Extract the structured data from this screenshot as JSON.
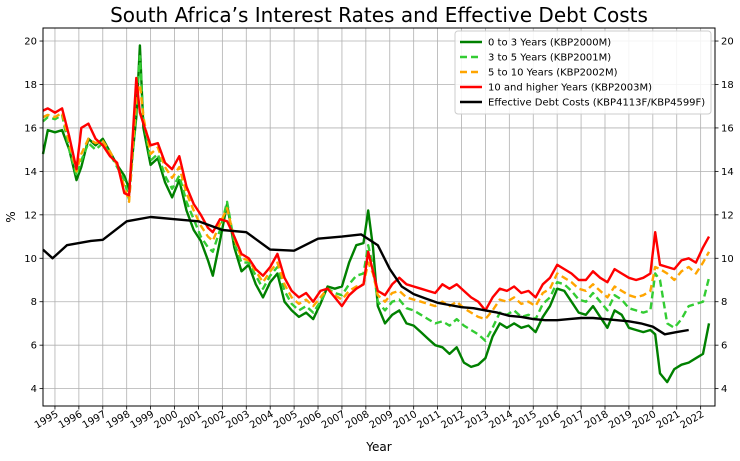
{
  "chart_data": {
    "type": "line",
    "title": "South Africa’s Interest Rates and Effective Debt Costs",
    "xlabel": "Year",
    "ylabel": "%",
    "xlim": [
      1994.5,
      2022.6
    ],
    "ylim": [
      3.2,
      20.6
    ],
    "grid": true,
    "legend_position": "top-right",
    "x_ticks": [
      1995,
      1996,
      1997,
      1998,
      1999,
      2000,
      2001,
      2002,
      2003,
      2004,
      2005,
      2006,
      2007,
      2008,
      2009,
      2010,
      2011,
      2012,
      2013,
      2014,
      2015,
      2016,
      2017,
      2018,
      2019,
      2020,
      2021,
      2022
    ],
    "x_tick_labels": [
      "1995",
      "1996",
      "1997",
      "1998",
      "1999",
      "2000",
      "2001",
      "2002",
      "2003",
      "2004",
      "2005",
      "2006",
      "2007",
      "2008",
      "2009",
      "2010",
      "2011",
      "2012",
      "2013",
      "2014",
      "2015",
      "2016",
      "2017",
      "2018",
      "2019",
      "2020",
      "2021",
      "2022"
    ],
    "y_ticks": [
      4,
      6,
      8,
      10,
      12,
      14,
      16,
      18,
      20
    ],
    "y_tick_labels": [
      "4",
      "6",
      "8",
      "10",
      "12",
      "14",
      "16",
      "18",
      "20"
    ],
    "series": [
      {
        "name": "0 to 3 Years (KBP2000M)",
        "color": "#008000",
        "dash": "solid",
        "x": [
          1994.5,
          1994.7,
          1995.0,
          1995.3,
          1995.6,
          1995.9,
          1996.1,
          1996.4,
          1996.7,
          1997.0,
          1997.3,
          1997.6,
          1997.9,
          1998.1,
          1998.4,
          1998.55,
          1998.7,
          1999.0,
          1999.3,
          1999.6,
          1999.9,
          2000.2,
          2000.5,
          2000.8,
          2001.1,
          2001.4,
          2001.6,
          2001.9,
          2002.2,
          2002.5,
          2002.8,
          2003.1,
          2003.4,
          2003.7,
          2004.0,
          2004.3,
          2004.6,
          2004.9,
          2005.2,
          2005.5,
          2005.8,
          2006.1,
          2006.4,
          2006.7,
          2007.0,
          2007.3,
          2007.6,
          2007.9,
          2008.1,
          2008.3,
          2008.5,
          2008.8,
          2009.1,
          2009.4,
          2009.7,
          2010.0,
          2010.3,
          2010.6,
          2010.9,
          2011.2,
          2011.5,
          2011.8,
          2012.1,
          2012.4,
          2012.7,
          2013.0,
          2013.3,
          2013.6,
          2013.9,
          2014.2,
          2014.5,
          2014.8,
          2015.1,
          2015.4,
          2015.7,
          2016.0,
          2016.3,
          2016.6,
          2016.9,
          2017.2,
          2017.5,
          2017.8,
          2018.1,
          2018.4,
          2018.7,
          2019.0,
          2019.3,
          2019.6,
          2019.9,
          2020.1,
          2020.3,
          2020.6,
          2020.9,
          2021.2,
          2021.5,
          2021.8,
          2022.1,
          2022.35
        ],
        "y": [
          14.8,
          15.9,
          15.8,
          15.9,
          15.0,
          13.6,
          14.2,
          15.5,
          15.2,
          15.5,
          14.9,
          14.3,
          13.8,
          13.2,
          16.5,
          19.8,
          16.0,
          14.3,
          14.6,
          13.5,
          12.8,
          13.6,
          12.2,
          11.3,
          10.8,
          9.9,
          9.2,
          10.8,
          12.5,
          10.5,
          9.4,
          9.7,
          8.8,
          8.2,
          8.9,
          9.3,
          8.0,
          7.6,
          7.3,
          7.5,
          7.2,
          7.9,
          8.7,
          8.6,
          8.7,
          9.8,
          10.6,
          10.7,
          12.2,
          10.5,
          7.8,
          7.0,
          7.4,
          7.6,
          7.0,
          6.9,
          6.6,
          6.3,
          6.0,
          5.9,
          5.6,
          5.9,
          5.2,
          5.0,
          5.1,
          5.4,
          6.4,
          7.0,
          6.8,
          7.0,
          6.8,
          6.9,
          6.6,
          7.3,
          7.8,
          8.6,
          8.5,
          8.0,
          7.5,
          7.4,
          7.8,
          7.3,
          6.8,
          7.6,
          7.4,
          6.8,
          6.7,
          6.6,
          6.7,
          6.5,
          4.7,
          4.3,
          4.9,
          5.1,
          5.2,
          5.4,
          5.6,
          7.0
        ]
      },
      {
        "name": "3 to 5 Years (KBP2001M)",
        "color": "#33cc33",
        "dash": "dashed",
        "x": [
          1994.5,
          1994.7,
          1995.0,
          1995.3,
          1995.6,
          1995.9,
          1996.1,
          1996.4,
          1996.7,
          1997.0,
          1997.3,
          1997.6,
          1997.9,
          1998.1,
          1998.4,
          1998.55,
          1998.7,
          1999.0,
          1999.3,
          1999.6,
          1999.9,
          2000.2,
          2000.5,
          2000.8,
          2001.1,
          2001.4,
          2001.6,
          2001.9,
          2002.2,
          2002.5,
          2002.8,
          2003.1,
          2003.4,
          2003.7,
          2004.0,
          2004.3,
          2004.6,
          2004.9,
          2005.2,
          2005.5,
          2005.8,
          2006.1,
          2006.4,
          2006.7,
          2007.0,
          2007.3,
          2007.6,
          2007.9,
          2008.1,
          2008.3,
          2008.5,
          2008.8,
          2009.1,
          2009.4,
          2009.7,
          2010.0,
          2010.3,
          2010.6,
          2010.9,
          2011.2,
          2011.5,
          2011.8,
          2012.1,
          2012.4,
          2012.7,
          2013.0,
          2013.3,
          2013.6,
          2013.9,
          2014.2,
          2014.5,
          2014.8,
          2015.1,
          2015.4,
          2015.7,
          2016.0,
          2016.3,
          2016.6,
          2016.9,
          2017.2,
          2017.5,
          2017.8,
          2018.1,
          2018.4,
          2018.7,
          2019.0,
          2019.3,
          2019.6,
          2019.9,
          2020.1,
          2020.3,
          2020.6,
          2020.9,
          2021.2,
          2021.5,
          2021.8,
          2022.1,
          2022.35
        ],
        "y": [
          16.3,
          16.5,
          16.4,
          16.6,
          15.0,
          13.8,
          14.5,
          15.3,
          15.0,
          15.3,
          14.8,
          14.2,
          13.6,
          12.7,
          16.8,
          19.3,
          16.4,
          14.5,
          14.8,
          13.8,
          13.2,
          13.8,
          12.6,
          11.8,
          11.0,
          10.5,
          10.3,
          11.3,
          12.6,
          10.7,
          9.8,
          9.8,
          9.2,
          8.6,
          9.2,
          9.6,
          8.5,
          7.9,
          7.6,
          7.8,
          7.5,
          8.0,
          8.6,
          8.4,
          8.3,
          8.8,
          9.2,
          9.3,
          10.6,
          9.6,
          8.0,
          7.6,
          8.0,
          8.1,
          7.7,
          7.6,
          7.4,
          7.2,
          7.0,
          7.1,
          6.9,
          7.2,
          6.9,
          6.7,
          6.5,
          6.2,
          6.8,
          7.5,
          7.4,
          7.6,
          7.3,
          7.4,
          7.2,
          7.9,
          8.2,
          8.9,
          8.8,
          8.5,
          8.1,
          8.0,
          8.4,
          8.0,
          7.6,
          8.3,
          8.1,
          7.7,
          7.6,
          7.5,
          7.6,
          9.3,
          9.0,
          7.0,
          6.8,
          7.2,
          7.8,
          7.9,
          8.0,
          9.1
        ]
      },
      {
        "name": "5 to 10 Years (KBP2002M)",
        "color": "#ffa500",
        "dash": "dashed",
        "x": [
          1994.5,
          1994.7,
          1995.0,
          1995.3,
          1995.6,
          1995.9,
          1996.1,
          1996.4,
          1996.7,
          1997.0,
          1997.3,
          1997.6,
          1997.9,
          1998.1,
          1998.4,
          1998.55,
          1998.7,
          1999.0,
          1999.3,
          1999.6,
          1999.9,
          2000.2,
          2000.5,
          2000.8,
          2001.1,
          2001.4,
          2001.6,
          2001.9,
          2002.2,
          2002.5,
          2002.8,
          2003.1,
          2003.4,
          2003.7,
          2004.0,
          2004.3,
          2004.6,
          2004.9,
          2005.2,
          2005.5,
          2005.8,
          2006.1,
          2006.4,
          2006.7,
          2007.0,
          2007.3,
          2007.6,
          2007.9,
          2008.1,
          2008.3,
          2008.5,
          2008.8,
          2009.1,
          2009.4,
          2009.7,
          2010.0,
          2010.3,
          2010.6,
          2010.9,
          2011.2,
          2011.5,
          2011.8,
          2012.1,
          2012.4,
          2012.7,
          2013.0,
          2013.3,
          2013.6,
          2013.9,
          2014.2,
          2014.5,
          2014.8,
          2015.1,
          2015.4,
          2015.7,
          2016.0,
          2016.3,
          2016.6,
          2016.9,
          2017.2,
          2017.5,
          2017.8,
          2018.1,
          2018.4,
          2018.7,
          2019.0,
          2019.3,
          2019.6,
          2019.9,
          2020.1,
          2020.3,
          2020.6,
          2020.9,
          2021.2,
          2021.5,
          2021.8,
          2022.1,
          2022.35
        ],
        "y": [
          16.5,
          16.6,
          16.5,
          16.7,
          15.3,
          14.0,
          14.8,
          15.5,
          15.3,
          15.4,
          14.9,
          14.3,
          13.3,
          12.6,
          17.5,
          18.0,
          16.5,
          14.8,
          15.1,
          14.2,
          13.7,
          14.2,
          13.0,
          12.2,
          11.5,
          11.0,
          10.8,
          11.6,
          12.3,
          10.9,
          10.0,
          9.9,
          9.4,
          8.9,
          9.4,
          9.8,
          8.8,
          8.2,
          7.9,
          8.1,
          7.8,
          8.2,
          8.6,
          8.3,
          8.1,
          8.5,
          8.7,
          8.8,
          9.8,
          9.3,
          8.3,
          8.0,
          8.4,
          8.5,
          8.2,
          8.1,
          8.0,
          7.9,
          7.8,
          8.0,
          7.8,
          8.0,
          7.7,
          7.5,
          7.3,
          7.2,
          7.6,
          8.1,
          8.0,
          8.2,
          7.9,
          8.0,
          7.8,
          8.4,
          8.6,
          9.3,
          9.1,
          8.9,
          8.6,
          8.5,
          8.8,
          8.5,
          8.2,
          8.7,
          8.5,
          8.3,
          8.2,
          8.3,
          8.5,
          9.6,
          9.5,
          9.3,
          9.0,
          9.4,
          9.6,
          9.3,
          9.8,
          10.3
        ]
      },
      {
        "name": "10 and higher Years (KBP2003M)",
        "color": "#ff0000",
        "dash": "solid",
        "x": [
          1994.5,
          1994.7,
          1995.0,
          1995.3,
          1995.6,
          1995.9,
          1996.1,
          1996.4,
          1996.7,
          1997.0,
          1997.3,
          1997.6,
          1997.9,
          1998.1,
          1998.4,
          1998.55,
          1998.7,
          1999.0,
          1999.3,
          1999.6,
          1999.9,
          2000.2,
          2000.5,
          2000.8,
          2001.1,
          2001.4,
          2001.6,
          2001.9,
          2002.2,
          2002.5,
          2002.8,
          2003.1,
          2003.4,
          2003.7,
          2004.0,
          2004.3,
          2004.6,
          2004.9,
          2005.2,
          2005.5,
          2005.8,
          2006.1,
          2006.4,
          2006.7,
          2007.0,
          2007.3,
          2007.6,
          2007.9,
          2008.1,
          2008.3,
          2008.5,
          2008.8,
          2009.1,
          2009.4,
          2009.7,
          2010.0,
          2010.3,
          2010.6,
          2010.9,
          2011.2,
          2011.5,
          2011.8,
          2012.1,
          2012.4,
          2012.7,
          2013.0,
          2013.3,
          2013.6,
          2013.9,
          2014.2,
          2014.5,
          2014.8,
          2015.1,
          2015.4,
          2015.7,
          2016.0,
          2016.3,
          2016.6,
          2016.9,
          2017.2,
          2017.5,
          2017.8,
          2018.1,
          2018.4,
          2018.7,
          2019.0,
          2019.3,
          2019.6,
          2019.9,
          2020.1,
          2020.3,
          2020.6,
          2020.9,
          2021.2,
          2021.5,
          2021.8,
          2022.1,
          2022.35
        ],
        "y": [
          16.8,
          16.9,
          16.7,
          16.9,
          15.6,
          14.1,
          16.0,
          16.2,
          15.5,
          15.2,
          14.7,
          14.4,
          13.0,
          12.9,
          18.3,
          16.7,
          16.2,
          15.2,
          15.3,
          14.4,
          14.1,
          14.7,
          13.3,
          12.5,
          12.0,
          11.4,
          11.2,
          11.8,
          11.7,
          11.0,
          10.2,
          10.0,
          9.5,
          9.2,
          9.6,
          10.2,
          9.1,
          8.5,
          8.2,
          8.4,
          8.0,
          8.5,
          8.6,
          8.2,
          7.8,
          8.3,
          8.6,
          8.8,
          10.3,
          9.4,
          8.5,
          8.3,
          8.8,
          9.1,
          8.8,
          8.7,
          8.6,
          8.5,
          8.4,
          8.8,
          8.6,
          8.8,
          8.5,
          8.2,
          8.0,
          7.6,
          8.2,
          8.6,
          8.5,
          8.7,
          8.4,
          8.5,
          8.2,
          8.8,
          9.1,
          9.7,
          9.5,
          9.3,
          9.0,
          9.0,
          9.4,
          9.1,
          8.9,
          9.5,
          9.3,
          9.1,
          9.0,
          9.1,
          9.3,
          11.2,
          9.7,
          9.6,
          9.5,
          9.9,
          10.0,
          9.8,
          10.5,
          11.0
        ]
      },
      {
        "name": "Effective Debt Costs (KBP4113F/KBP4599F)",
        "color": "#000000",
        "dash": "solid",
        "x": [
          1994.5,
          1994.9,
          1995.5,
          1996.5,
          1997.0,
          1998.0,
          1999.0,
          2000.0,
          2001.0,
          2002.0,
          2003.0,
          2004.0,
          2005.0,
          2006.0,
          2007.0,
          2007.8,
          2008.5,
          2009.0,
          2009.5,
          2010.0,
          2010.5,
          2011.0,
          2011.5,
          2012.0,
          2012.5,
          2013.0,
          2013.5,
          2014.0,
          2014.5,
          2015.0,
          2015.5,
          2016.0,
          2016.5,
          2017.0,
          2017.5,
          2018.0,
          2018.5,
          2019.0,
          2019.5,
          2020.0,
          2020.5,
          2021.0,
          2021.5
        ],
        "y": [
          10.4,
          10.0,
          10.6,
          10.8,
          10.85,
          11.7,
          11.9,
          11.8,
          11.7,
          11.3,
          11.2,
          10.4,
          10.35,
          10.9,
          11.0,
          11.1,
          10.6,
          9.5,
          8.7,
          8.35,
          8.15,
          7.95,
          7.85,
          7.75,
          7.7,
          7.6,
          7.5,
          7.35,
          7.3,
          7.2,
          7.15,
          7.15,
          7.2,
          7.25,
          7.25,
          7.2,
          7.15,
          7.1,
          7.0,
          6.85,
          6.5,
          6.6,
          6.7
        ]
      }
    ]
  }
}
